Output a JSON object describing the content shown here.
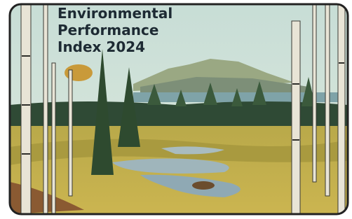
{
  "cover": {
    "title_lines": [
      "Environmental",
      "Performance",
      "Index 2024"
    ]
  }
}
